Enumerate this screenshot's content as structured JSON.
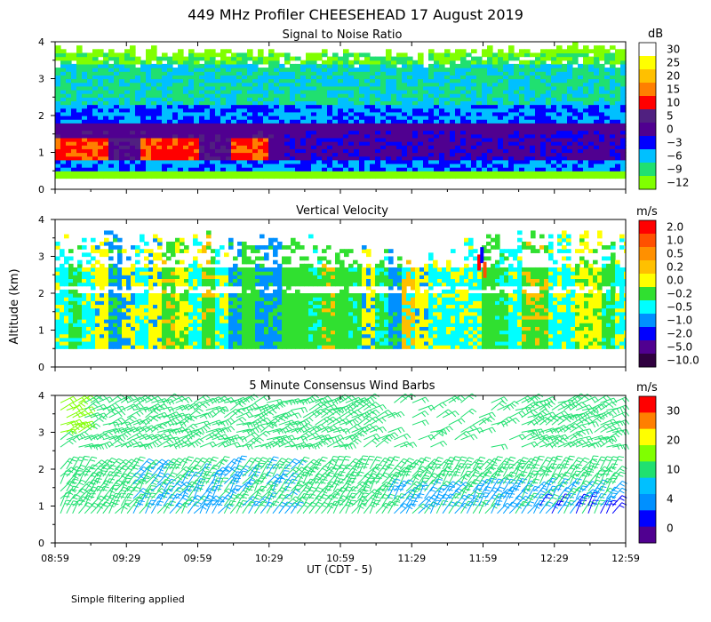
{
  "title": "449 MHz Profiler CHEESEHEAD 17 August 2019",
  "ylabel": "Altitude (km)",
  "xlabel": "UT  (CDT - 5)",
  "footnote": "Simple filtering applied",
  "x_ticks": [
    "08:59",
    "09:29",
    "09:59",
    "10:29",
    "10:59",
    "11:29",
    "11:59",
    "12:29",
    "12:59"
  ],
  "y_ticks": [
    "0",
    "1",
    "2",
    "3",
    "4"
  ],
  "chart_data": [
    {
      "type": "heatmap",
      "title": "Signal to Noise Ratio",
      "units": "dB",
      "x_range": [
        "08:59",
        "12:59"
      ],
      "ylim": [
        0,
        4
      ],
      "colorbar_labels": [
        "30",
        "25",
        "20",
        "15",
        "10",
        "5",
        "0",
        "−3",
        "−6",
        "−9",
        "−12"
      ],
      "colorbar_colors": [
        "#ffffff",
        "#ffff00",
        "#ffc000",
        "#ff7f00",
        "#ff0000",
        "#502080",
        "#500090",
        "#0000ff",
        "#00c0ff",
        "#20e070",
        "#80ff00"
      ],
      "layers_km": [
        {
          "from": 0.3,
          "to": 0.5,
          "value_db": -12
        },
        {
          "from": 0.5,
          "to": 0.8,
          "value_db": -3
        },
        {
          "from": 0.8,
          "to": 1.8,
          "value_db": 3
        },
        {
          "from": 1.8,
          "to": 2.3,
          "value_db": -3
        },
        {
          "from": 2.3,
          "to": 3.4,
          "value_db": -6
        },
        {
          "from": 3.4,
          "to": 3.7,
          "value_db": -9
        },
        {
          "from": 3.7,
          "to": 3.9,
          "value_db": -12
        }
      ],
      "peak_region": {
        "from_time": "09:00",
        "to_time": "10:25",
        "alt_km": [
          0.8,
          1.4
        ],
        "value_db": 12
      }
    },
    {
      "type": "heatmap",
      "title": "Vertical Velocity",
      "units": "m/s",
      "x_range": [
        "08:59",
        "12:59"
      ],
      "ylim": [
        0,
        4
      ],
      "colorbar_labels": [
        "2.0",
        "1.0",
        "0.5",
        "0.2",
        "0.0",
        "−0.2",
        "−0.5",
        "−1.0",
        "−2.0",
        "−5.0",
        "−10.0"
      ],
      "colorbar_colors": [
        "#ff0000",
        "#ff5000",
        "#ff9000",
        "#ffc000",
        "#ffff00",
        "#30e030",
        "#00ffff",
        "#0090ff",
        "#0000ff",
        "#500090",
        "#300040"
      ],
      "data_extent_km": [
        0.5,
        3.8
      ],
      "gaps_km": [
        [
          2.0,
          2.25
        ],
        [
          2.75,
          3.1
        ]
      ],
      "dominant_values_ms": [
        -0.2,
        -0.5,
        0.0
      ]
    },
    {
      "type": "wind_barbs",
      "title": "5 Minute Consensus Wind Barbs",
      "units": "m/s",
      "x_range": [
        "08:59",
        "12:59"
      ],
      "ylim": [
        0,
        4
      ],
      "colorbar_labels": [
        "30",
        "20",
        "10",
        "4",
        "0"
      ],
      "colorbar_colors": [
        "#ff0000",
        "#ff7f00",
        "#ffff00",
        "#80ff00",
        "#20e070",
        "#00c0ff",
        "#0090ff",
        "#0000ff",
        "#500090"
      ],
      "levels_km": [
        0.8,
        1.0,
        1.2,
        1.4,
        1.6,
        1.8,
        2.0,
        2.6,
        2.8,
        3.0,
        3.2,
        3.4,
        3.6,
        3.8
      ],
      "typical_speed_ms": 8
    }
  ]
}
